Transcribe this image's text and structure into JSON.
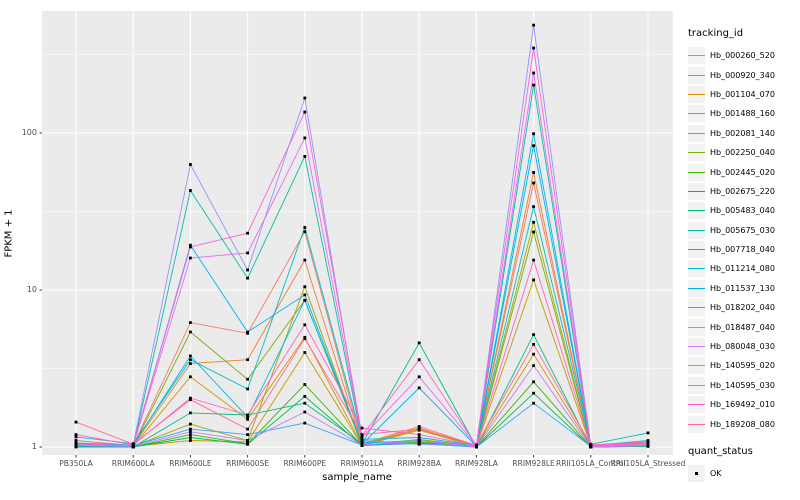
{
  "figure": {
    "x_axis_title": "sample_name",
    "y_axis_title": "FPKM + 1",
    "legend1_title": "tracking_id",
    "legend2_title": "quant_status",
    "quant_status_label": "OK"
  },
  "colors": {
    "panel_background": "#ebebeb",
    "gridline": "#ffffff",
    "tick_text": "#4d4d4d",
    "point": "#000000",
    "legend_key_background": "#f2f2f2"
  },
  "chart_data": {
    "type": "line",
    "title": "",
    "xlabel": "sample_name",
    "ylabel": "FPKM + 1",
    "y_scale": "log10",
    "ylim": [
      1,
      510
    ],
    "y_ticks": [
      1,
      10,
      100
    ],
    "y_minor_ticks": [
      3.162,
      31.62,
      316.2
    ],
    "grid": "on",
    "legend_position": "right",
    "point_shape": "small-black-square",
    "categories": [
      "PB350LA",
      "RRIM600LA",
      "RRIM600LE",
      "RRIM600SE",
      "RRIM600PE",
      "RRIM901LA",
      "RRIM928BA",
      "RRIM928LA",
      "RRIM928LE",
      "RRII105LA_Control",
      "RRII105LA_Stressed"
    ],
    "series": [
      {
        "name": "Hb_000260_520",
        "color": "#F8766D",
        "values": [
          1.1,
          1.02,
          6.2,
          5.3,
          23.5,
          1.05,
          1.35,
          1.02,
          48,
          1.02,
          1.05
        ]
      },
      {
        "name": "Hb_000920_340",
        "color": "#EA8331",
        "values": [
          1.05,
          1.02,
          3.4,
          3.6,
          15.5,
          1.04,
          1.32,
          1.01,
          56,
          1.01,
          1.04
        ]
      },
      {
        "name": "Hb_001104_070",
        "color": "#D89000",
        "values": [
          1.04,
          1.01,
          2.8,
          1.5,
          5.0,
          1.03,
          1.3,
          1.01,
          3.9,
          1.01,
          1.03
        ]
      },
      {
        "name": "Hb_001488_160",
        "color": "#C09B00",
        "values": [
          1.03,
          1.01,
          1.1,
          1.08,
          4.0,
          1.02,
          1.28,
          1.01,
          11.6,
          1.01,
          1.02
        ]
      },
      {
        "name": "Hb_002081_140",
        "color": "#A3A500",
        "values": [
          1.02,
          1.01,
          1.4,
          1.1,
          10.5,
          1.02,
          1.12,
          1.01,
          27,
          1.0,
          1.02
        ]
      },
      {
        "name": "Hb_002250_040",
        "color": "#7CAE00",
        "values": [
          1.02,
          1.01,
          5.4,
          2.7,
          8.6,
          1.03,
          1.1,
          1.01,
          23.4,
          1.0,
          1.02
        ]
      },
      {
        "name": "Hb_002445_020",
        "color": "#39B600",
        "values": [
          1.01,
          1.0,
          1.2,
          1.05,
          2.5,
          1.02,
          1.08,
          1.0,
          2.6,
          1.0,
          1.01
        ]
      },
      {
        "name": "Hb_002675_220",
        "color": "#00BB4E",
        "values": [
          1.01,
          1.0,
          1.15,
          1.04,
          2.1,
          1.02,
          1.06,
          1.0,
          2.2,
          1.0,
          1.01
        ]
      },
      {
        "name": "Hb_005483_040",
        "color": "#00BF7D",
        "values": [
          1.01,
          1.0,
          1.65,
          1.6,
          1.9,
          1.05,
          4.6,
          1.0,
          5.2,
          1.0,
          1.05
        ]
      },
      {
        "name": "Hb_005675_030",
        "color": "#00C1A3",
        "values": [
          1.0,
          1.0,
          43,
          11.9,
          71,
          1.1,
          1.05,
          1.0,
          202,
          1.0,
          1.08
        ]
      },
      {
        "name": "Hb_007718_040",
        "color": "#00BFC4",
        "values": [
          1.16,
          1.05,
          3.6,
          2.34,
          25,
          1.12,
          1.15,
          1.02,
          34,
          1.04,
          1.23
        ]
      },
      {
        "name": "Hb_011214_080",
        "color": "#00BAE0",
        "values": [
          1.06,
          1.03,
          3.8,
          1.55,
          8.6,
          1.06,
          1.1,
          1.01,
          99,
          1.02,
          1.1
        ]
      },
      {
        "name": "Hb_011537_130",
        "color": "#00B0F6",
        "values": [
          1.05,
          1.02,
          19.3,
          5.4,
          9.3,
          1.04,
          2.38,
          1.01,
          83,
          1.02,
          1.05
        ]
      },
      {
        "name": "Hb_018202_040",
        "color": "#35A2FF",
        "values": [
          1.04,
          1.02,
          1.3,
          1.2,
          1.42,
          1.03,
          1.05,
          1.0,
          1.9,
          1.01,
          1.03
        ]
      },
      {
        "name": "Hb_018487_040",
        "color": "#9590FF",
        "values": [
          1.02,
          1.03,
          63,
          13.4,
          167,
          1.1,
          1.04,
          1.02,
          487,
          1.02,
          1.04
        ]
      },
      {
        "name": "Hb_080048_030",
        "color": "#C77CFF",
        "values": [
          1.02,
          1.01,
          1.25,
          1.1,
          1.67,
          1.03,
          1.1,
          1.0,
          3.3,
          1.0,
          1.02
        ]
      },
      {
        "name": "Hb_140595_020",
        "color": "#E76BF3",
        "values": [
          1.03,
          1.02,
          16,
          17.2,
          93,
          1.15,
          2.8,
          1.02,
          241,
          1.01,
          1.03
        ]
      },
      {
        "name": "Hb_140595_030",
        "color": "#FA62DB",
        "values": [
          1.05,
          1.02,
          18.8,
          23,
          136,
          1.18,
          3.6,
          1.02,
          348,
          1.02,
          1.05
        ]
      },
      {
        "name": "Hb_169492_010",
        "color": "#FF61CC",
        "values": [
          1.2,
          1.03,
          2.05,
          1.6,
          6.0,
          1.32,
          1.2,
          1.02,
          15.5,
          1.02,
          1.06
        ]
      },
      {
        "name": "Hb_189208_080",
        "color": "#FF6A98",
        "values": [
          1.44,
          1.04,
          2.0,
          1.3,
          4.9,
          1.2,
          1.3,
          1.03,
          4.5,
          1.03,
          1.08
        ]
      }
    ]
  }
}
